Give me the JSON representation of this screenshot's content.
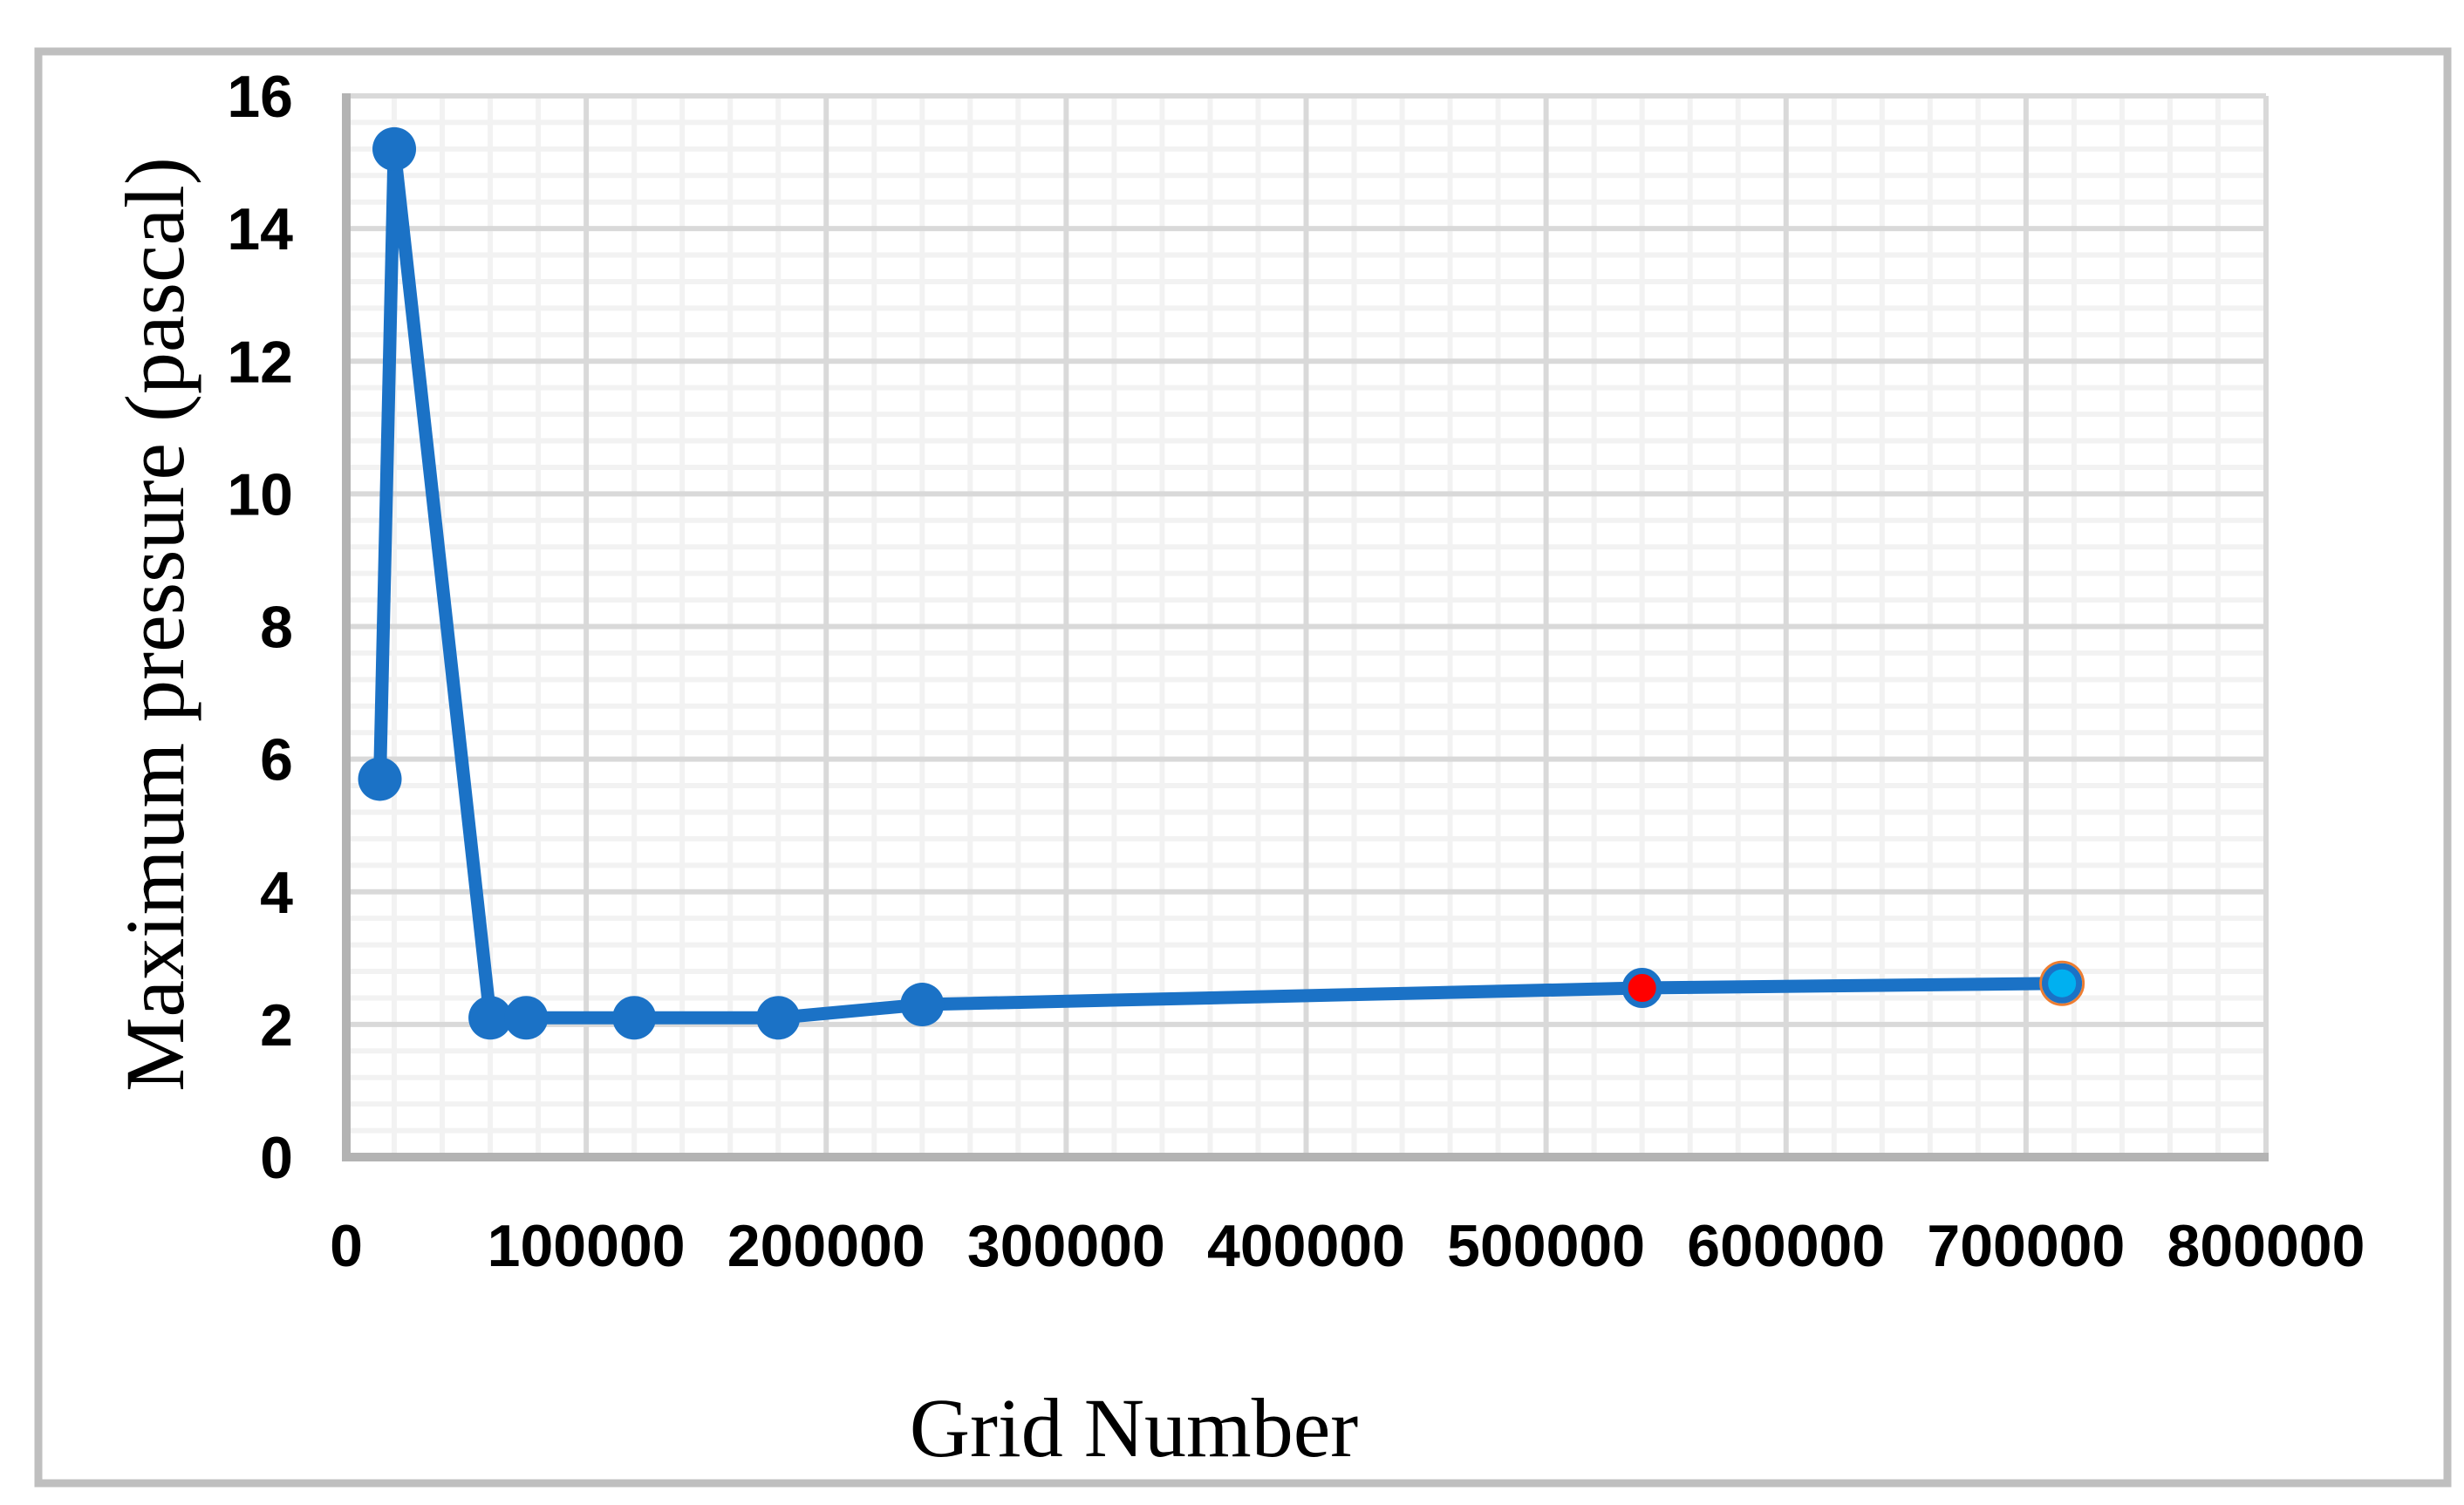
{
  "figure": {
    "background_color": "#FFFFFF",
    "frame_color": "#BFBFBF"
  },
  "chart_data": {
    "type": "line",
    "title": "",
    "xlabel": "Grid Number",
    "ylabel": "Maximum pressure (pascal)",
    "xlim": [
      0,
      800000
    ],
    "ylim": [
      0,
      16
    ],
    "x_tick_step": 100000,
    "y_tick_step": 2,
    "x_minor_step": 20000,
    "y_minor_step": 0.4,
    "x_tick_labels": [
      "0",
      "100000",
      "200000",
      "300000",
      "400000",
      "500000",
      "600000",
      "700000",
      "800000"
    ],
    "y_tick_labels": [
      "0",
      "2",
      "4",
      "6",
      "8",
      "10",
      "12",
      "14",
      "16"
    ],
    "grid": {
      "major_on": true,
      "minor_on": true,
      "major_color": "#D9D9D9",
      "minor_color": "#F2F2F2",
      "axis_line_color": "#B3B3B3"
    },
    "legend": "none",
    "series": [
      {
        "name": "Maximum pressure",
        "color": "#1B72C6",
        "points": [
          {
            "x": 14000,
            "y": 5.7
          },
          {
            "x": 20000,
            "y": 15.2
          },
          {
            "x": 60000,
            "y": 2.1
          },
          {
            "x": 75000,
            "y": 2.1
          },
          {
            "x": 120000,
            "y": 2.1
          },
          {
            "x": 180000,
            "y": 2.1
          },
          {
            "x": 240000,
            "y": 2.3
          },
          {
            "x": 540000,
            "y": 2.55,
            "marker_fill": "#FF0000"
          },
          {
            "x": 715000,
            "y": 2.62,
            "marker_fill": "#00B0F0",
            "outer_ring": "#ED7D31"
          }
        ]
      }
    ]
  }
}
